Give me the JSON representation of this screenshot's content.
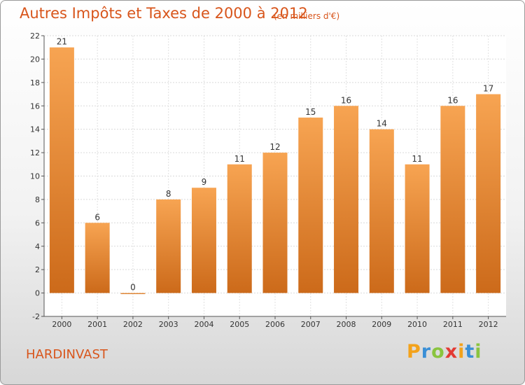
{
  "header": {
    "title": "Autres Impôts et Taxes de 2000 à 2012",
    "subtitle": "(en milliers d'€)"
  },
  "footer": {
    "commune": "HARDINVAST",
    "logo": "Proxiti"
  },
  "colors": {
    "accent": "#d8551b",
    "bar_top": "#f7a452",
    "bar_bottom": "#cc6a1a"
  },
  "chart_data": {
    "type": "bar",
    "title": "Autres Impôts et Taxes de 2000 à 2012",
    "subtitle": "(en milliers d'€)",
    "categories": [
      "2000",
      "2001",
      "2002",
      "2003",
      "2004",
      "2005",
      "2006",
      "2007",
      "2008",
      "2009",
      "2010",
      "2011",
      "2012"
    ],
    "values": [
      21,
      6,
      0,
      8,
      9,
      11,
      12,
      15,
      16,
      14,
      11,
      16,
      17
    ],
    "data_labels": [
      "21",
      "6",
      "0",
      "8",
      "9",
      "11",
      "12",
      "15",
      "16",
      "14",
      "11",
      "16",
      "17"
    ],
    "ylim": [
      -2,
      22
    ],
    "yticks": [
      -2,
      0,
      2,
      4,
      6,
      8,
      10,
      12,
      14,
      16,
      18,
      20,
      22
    ],
    "grid": true,
    "xlabel": "",
    "ylabel": ""
  }
}
